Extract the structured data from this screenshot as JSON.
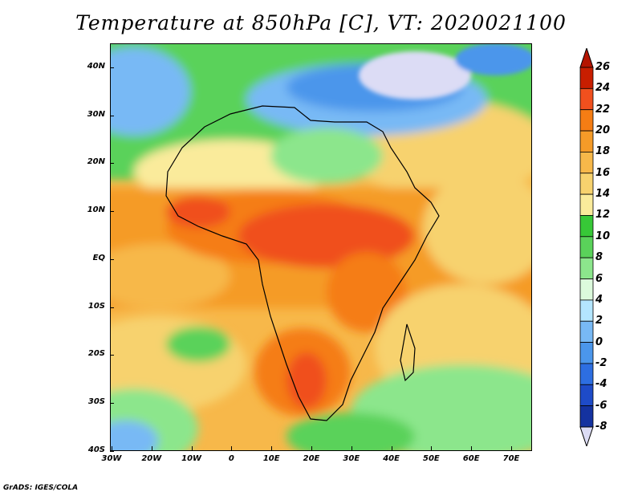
{
  "title": "Temperature at 850hPa [C], VT: 2020021100",
  "credit": "GrADS: IGES/COLA",
  "lat_labels": [
    "40N",
    "30N",
    "20N",
    "10N",
    "EQ",
    "10S",
    "20S",
    "30S",
    "40S"
  ],
  "lon_labels": [
    "30W",
    "20W",
    "10W",
    "0",
    "10E",
    "20E",
    "30E",
    "40E",
    "50E",
    "60E",
    "70E"
  ],
  "colorbar": {
    "labels": [
      "26",
      "24",
      "22",
      "20",
      "18",
      "16",
      "14",
      "12",
      "10",
      "8",
      "6",
      "4",
      "2",
      "0",
      "-2",
      "-4",
      "-6",
      "-8"
    ],
    "colors": [
      "#c81e00",
      "#f0501e",
      "#f57d14",
      "#f59b28",
      "#f7b84a",
      "#f7d26e",
      "#faeb9b",
      "#37c837",
      "#5ad25a",
      "#8ce68c",
      "#dcfadc",
      "#b4e6ff",
      "#78b9f5",
      "#4b96eb",
      "#2d6ee1",
      "#1e4bc8",
      "#1432a0",
      "#0a1478"
    ],
    "end_colors": {
      "top": "#b41400",
      "bottom": "#dcdcf5"
    }
  },
  "legend_colors": {
    "ocean_south": "#f5b84a",
    "north_africa": "#78c878",
    "mediterranean": "#5aa0eb",
    "europe_cold": "#d2d2f5",
    "sahara": "#f7d26e",
    "central_hot": "#f0501e"
  }
}
